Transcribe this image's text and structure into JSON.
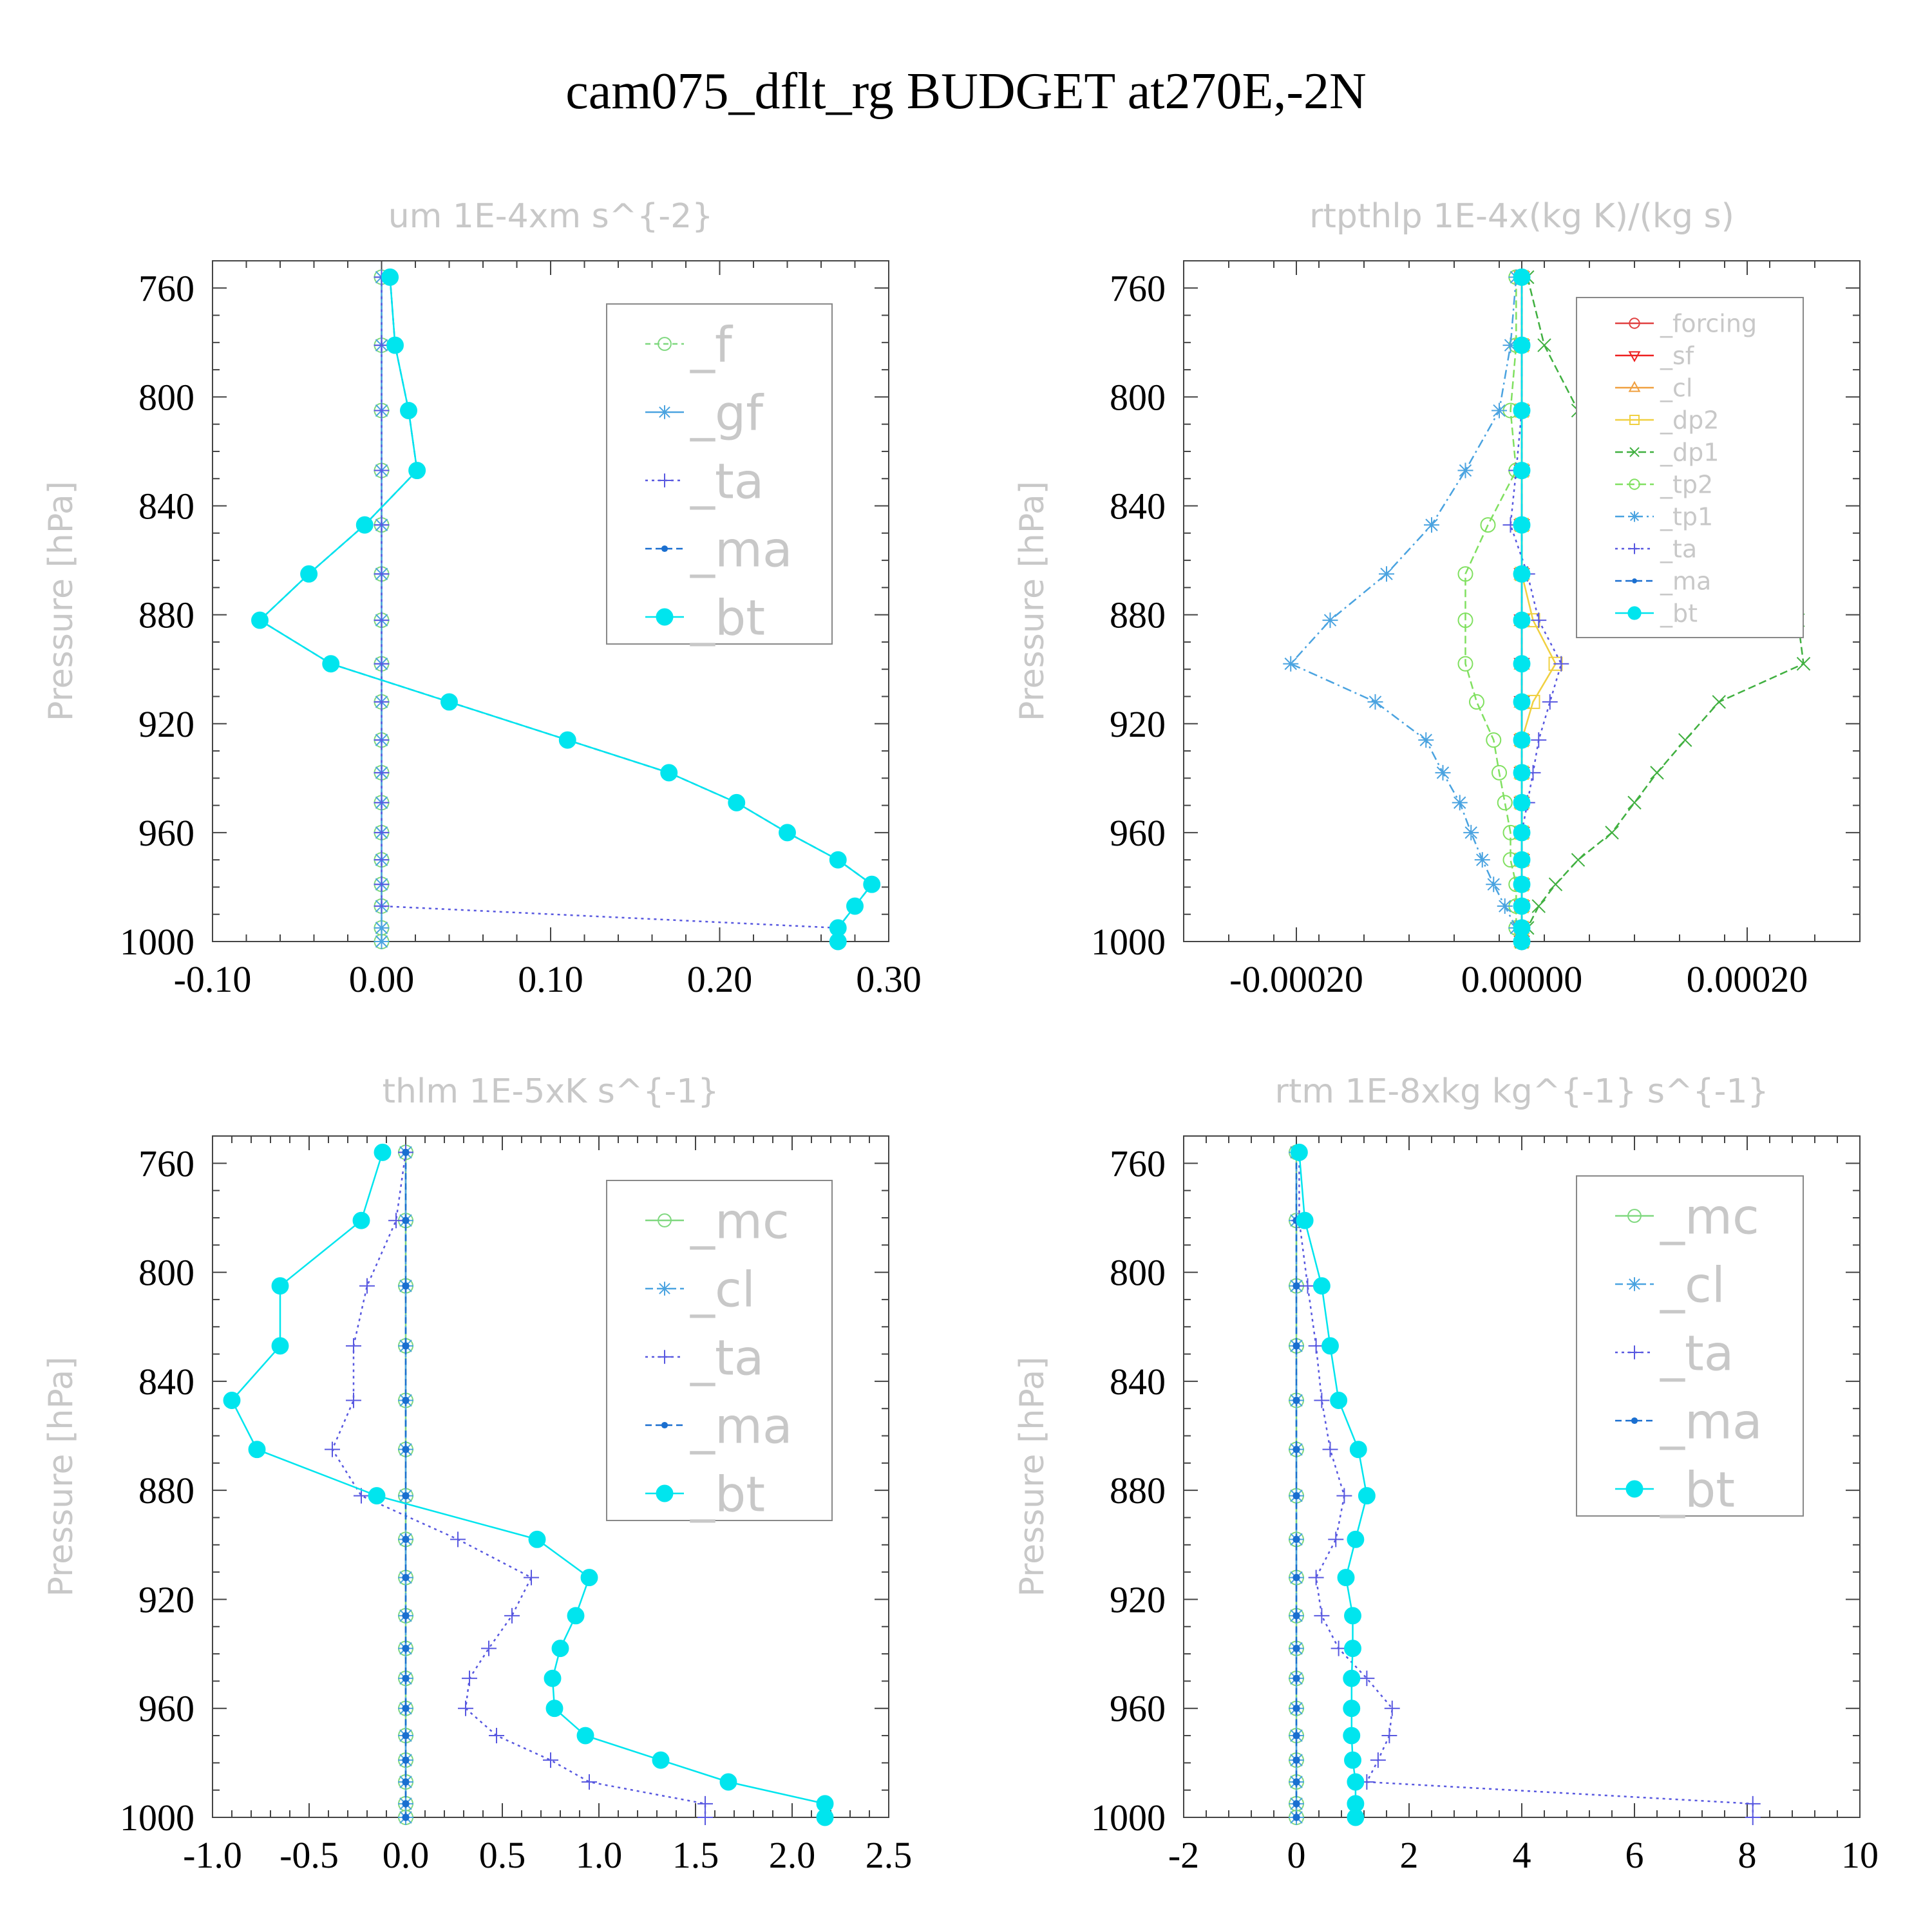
{
  "page": {
    "title": "cam075_dflt_rg  BUDGET at270E,-2N"
  },
  "chart_data": [
    {
      "type": "line",
      "title": "um  1E-4xm s^{-2}",
      "ylabel": "Pressure [hPa]",
      "xlim": [
        -0.1,
        0.3
      ],
      "ylim": [
        1000,
        750
      ],
      "xticks": [
        "-0.10",
        "0.00",
        "0.10",
        "0.20",
        "0.30"
      ],
      "yticks": [
        "760",
        "800",
        "840",
        "880",
        "920",
        "960",
        "1000"
      ],
      "y": [
        756,
        781,
        805,
        827,
        847,
        865,
        882,
        898,
        912,
        926,
        938,
        949,
        960,
        970,
        979,
        987,
        995,
        1000
      ],
      "legend_size": "large",
      "series": [
        {
          "name": "_f",
          "color": "#7fd87f",
          "marker": "circle",
          "dash": "8,6",
          "values": [
            0,
            0,
            0,
            0,
            0,
            0,
            0,
            0,
            0,
            0,
            0,
            0,
            0,
            0,
            0,
            0,
            0,
            0
          ]
        },
        {
          "name": "_gf",
          "color": "#4aa3e0",
          "marker": "star",
          "dash": "",
          "values": [
            0,
            0,
            0,
            0,
            0,
            0,
            0,
            0,
            0,
            0,
            0,
            0,
            0,
            0,
            0,
            0,
            0,
            0
          ]
        },
        {
          "name": "_ta",
          "color": "#5858e0",
          "marker": "plus",
          "dash": "4,6",
          "values": [
            0,
            0,
            0,
            0,
            0,
            0,
            0,
            0,
            0,
            0,
            0,
            0,
            0,
            0,
            0,
            0,
            0.27,
            0.27
          ]
        },
        {
          "name": "_ma",
          "color": "#1a6fd0",
          "marker": "dot",
          "dash": "10,6",
          "values": [
            0.005,
            0.008,
            0.016,
            0.021,
            -0.01,
            -0.043,
            -0.072,
            -0.03,
            0.04,
            0.11,
            0.17,
            0.21,
            0.24,
            0.27,
            0.29,
            0.28,
            0.27,
            0.27
          ]
        },
        {
          "name": "_bt",
          "color": "#00e5ee",
          "marker": "disc",
          "dash": "",
          "values": [
            0.005,
            0.008,
            0.016,
            0.021,
            -0.01,
            -0.043,
            -0.072,
            -0.03,
            0.04,
            0.11,
            0.17,
            0.21,
            0.24,
            0.27,
            0.29,
            0.28,
            0.27,
            0.27
          ]
        }
      ]
    },
    {
      "type": "line",
      "title": "rtpthlp  1E-4x(kg K)/(kg s)",
      "ylabel": "Pressure [hPa]",
      "xlim": [
        -0.0003,
        0.0003
      ],
      "ylim": [
        1000,
        750
      ],
      "xticks": [
        "-0.00020",
        "0.00000",
        "0.00020"
      ],
      "yticks": [
        "760",
        "800",
        "840",
        "880",
        "920",
        "960",
        "1000"
      ],
      "y": [
        756,
        781,
        805,
        827,
        847,
        865,
        882,
        898,
        912,
        926,
        938,
        949,
        960,
        970,
        979,
        987,
        995,
        1000
      ],
      "legend_size": "small",
      "series": [
        {
          "name": "_forcing",
          "color": "#e04040",
          "marker": "circle",
          "dash": "",
          "values": [
            0,
            0,
            0,
            0,
            0,
            0,
            0,
            0,
            0,
            0,
            0,
            0,
            0,
            0,
            0,
            0,
            0,
            0
          ]
        },
        {
          "name": "_sf",
          "color": "#ee2020",
          "marker": "tri-down",
          "dash": "",
          "values": [
            0,
            0,
            0,
            0,
            0,
            0,
            0,
            0,
            0,
            0,
            0,
            0,
            0,
            0,
            0,
            0,
            0,
            0
          ]
        },
        {
          "name": "_cl",
          "color": "#f0a040",
          "marker": "tri-up",
          "dash": "",
          "values": [
            0,
            0,
            0,
            0,
            0,
            0,
            0,
            0,
            0,
            0,
            0,
            0,
            0,
            0,
            0,
            0,
            0,
            0
          ]
        },
        {
          "name": "_dp2",
          "color": "#f0d040",
          "marker": "square",
          "dash": "",
          "values": [
            0,
            0,
            0,
            0,
            0,
            0,
            1e-05,
            3e-05,
            1e-05,
            0,
            0,
            0,
            0,
            0,
            0,
            0,
            0,
            0
          ]
        },
        {
          "name": "_dp1",
          "color": "#40b040",
          "marker": "x",
          "dash": "12,6",
          "values": [
            5e-06,
            2e-05,
            5e-05,
            0.0001,
            0.00015,
            0.00019,
            0.000245,
            0.00025,
            0.000175,
            0.000145,
            0.00012,
            0.0001,
            8e-05,
            5e-05,
            3e-05,
            1.5e-05,
            5e-06,
            0
          ]
        },
        {
          "name": "_tp2",
          "color": "#80e060",
          "marker": "circle",
          "dash": "12,6",
          "values": [
            -5e-06,
            -5e-06,
            -1e-05,
            -5e-06,
            -3e-05,
            -5e-05,
            -5e-05,
            -5e-05,
            -4e-05,
            -2.5e-05,
            -2e-05,
            -1.5e-05,
            -1e-05,
            -1e-05,
            -5e-06,
            -5e-06,
            -5e-06,
            0
          ]
        },
        {
          "name": "_tp1",
          "color": "#4aa3e0",
          "marker": "star",
          "dash": "14,6,3,6",
          "values": [
            -5e-06,
            -1e-05,
            -2e-05,
            -5e-05,
            -8e-05,
            -0.00012,
            -0.00017,
            -0.000205,
            -0.00013,
            -8.5e-05,
            -7e-05,
            -5.5e-05,
            -4.5e-05,
            -3.5e-05,
            -2.5e-05,
            -1.5e-05,
            -5e-06,
            0
          ]
        },
        {
          "name": "_ta",
          "color": "#5858e0",
          "marker": "plus",
          "dash": "4,6",
          "values": [
            0,
            0,
            0,
            -5e-06,
            -1e-05,
            5e-06,
            1.5e-05,
            3.5e-05,
            2.5e-05,
            1.5e-05,
            1e-05,
            5e-06,
            0,
            0,
            0,
            0,
            0,
            0
          ]
        },
        {
          "name": "_ma",
          "color": "#1a6fd0",
          "marker": "dot",
          "dash": "10,6",
          "values": [
            0,
            0,
            0,
            0,
            0,
            0,
            0,
            0,
            0,
            0,
            0,
            0,
            0,
            0,
            0,
            0,
            0,
            0
          ]
        },
        {
          "name": "_bt",
          "color": "#00e5ee",
          "marker": "disc",
          "dash": "",
          "values": [
            0,
            0,
            0,
            0,
            0,
            0,
            0,
            0,
            0,
            0,
            0,
            0,
            0,
            0,
            0,
            0,
            0,
            0
          ]
        }
      ]
    },
    {
      "type": "line",
      "title": "thlm  1E-5xK s^{-1}",
      "ylabel": "Pressure [hPa]",
      "xlim": [
        -1.0,
        2.5
      ],
      "ylim": [
        1000,
        750
      ],
      "xticks": [
        "-1.0",
        "-0.5",
        "0.0",
        "0.5",
        "1.0",
        "1.5",
        "2.0",
        "2.5"
      ],
      "yticks": [
        "760",
        "800",
        "840",
        "880",
        "920",
        "960",
        "1000"
      ],
      "y": [
        756,
        781,
        805,
        827,
        847,
        865,
        882,
        898,
        912,
        926,
        938,
        949,
        960,
        970,
        979,
        987,
        995,
        1000
      ],
      "legend_size": "large",
      "series": [
        {
          "name": "_mc",
          "color": "#7fd87f",
          "marker": "circle",
          "dash": "",
          "values": [
            0,
            0,
            0,
            0,
            0,
            0,
            0,
            0,
            0,
            0,
            0,
            0,
            0,
            0,
            0,
            0,
            0,
            0
          ]
        },
        {
          "name": "_cl",
          "color": "#4aa3e0",
          "marker": "star",
          "dash": "12,6",
          "values": [
            0,
            0,
            0,
            0,
            0,
            0,
            0,
            0,
            0,
            0,
            0,
            0,
            0,
            0,
            0,
            0,
            0,
            0
          ]
        },
        {
          "name": "_ta",
          "color": "#5858e0",
          "marker": "plus",
          "dash": "4,6",
          "values": [
            0,
            -0.05,
            -0.2,
            -0.27,
            -0.27,
            -0.38,
            -0.23,
            0.27,
            0.65,
            0.55,
            0.43,
            0.33,
            0.31,
            0.47,
            0.75,
            0.95,
            1.55,
            1.55
          ]
        },
        {
          "name": "_ma",
          "color": "#1a6fd0",
          "marker": "dot",
          "dash": "10,6",
          "values": [
            0,
            0,
            0,
            0,
            0,
            0,
            0,
            0,
            0,
            0,
            0,
            0,
            0,
            0,
            0,
            0,
            0,
            0
          ]
        },
        {
          "name": "_bt",
          "color": "#00e5ee",
          "marker": "disc",
          "dash": "",
          "values": [
            -0.12,
            -0.23,
            -0.65,
            -0.65,
            -0.9,
            -0.77,
            -0.15,
            0.68,
            0.95,
            0.88,
            0.8,
            0.76,
            0.77,
            0.93,
            1.32,
            1.67,
            2.17,
            2.17
          ]
        }
      ]
    },
    {
      "type": "line",
      "title": "rtm  1E-8xkg kg^{-1} s^{-1}",
      "ylabel": "Pressure [hPa]",
      "xlim": [
        -2,
        10
      ],
      "ylim": [
        1000,
        750
      ],
      "xticks": [
        "-2",
        "0",
        "2",
        "4",
        "6",
        "8",
        "10"
      ],
      "yticks": [
        "760",
        "800",
        "840",
        "880",
        "920",
        "960",
        "1000"
      ],
      "y": [
        756,
        781,
        805,
        827,
        847,
        865,
        882,
        898,
        912,
        926,
        938,
        949,
        960,
        970,
        979,
        987,
        995,
        1000
      ],
      "legend_size": "large",
      "series": [
        {
          "name": "_mc",
          "color": "#7fd87f",
          "marker": "circle",
          "dash": "",
          "values": [
            0,
            0,
            0,
            0,
            0,
            0,
            0,
            0,
            0,
            0,
            0,
            0,
            0,
            0,
            0,
            0,
            0,
            0
          ]
        },
        {
          "name": "_cl",
          "color": "#4aa3e0",
          "marker": "star",
          "dash": "12,6",
          "values": [
            0,
            0,
            0,
            0,
            0,
            0,
            0,
            0,
            0,
            0,
            0,
            0,
            0,
            0,
            0,
            0,
            0,
            0
          ]
        },
        {
          "name": "_ta",
          "color": "#5858e0",
          "marker": "plus",
          "dash": "4,6",
          "values": [
            0.05,
            0.05,
            0.2,
            0.35,
            0.45,
            0.6,
            0.85,
            0.7,
            0.35,
            0.45,
            0.75,
            1.25,
            1.7,
            1.65,
            1.45,
            1.25,
            8.1,
            8.1
          ]
        },
        {
          "name": "_ma",
          "color": "#1a6fd0",
          "marker": "dot",
          "dash": "10,6",
          "values": [
            0,
            0,
            0,
            0,
            0,
            0,
            0,
            0,
            0,
            0,
            0,
            0,
            0,
            0,
            0,
            0,
            0,
            0
          ]
        },
        {
          "name": "_bt",
          "color": "#00e5ee",
          "marker": "disc",
          "dash": "",
          "values": [
            0.05,
            0.15,
            0.45,
            0.6,
            0.75,
            1.1,
            1.25,
            1.05,
            0.88,
            1.0,
            1.0,
            0.98,
            0.98,
            0.98,
            1.0,
            1.05,
            1.05,
            1.05
          ]
        }
      ]
    }
  ]
}
